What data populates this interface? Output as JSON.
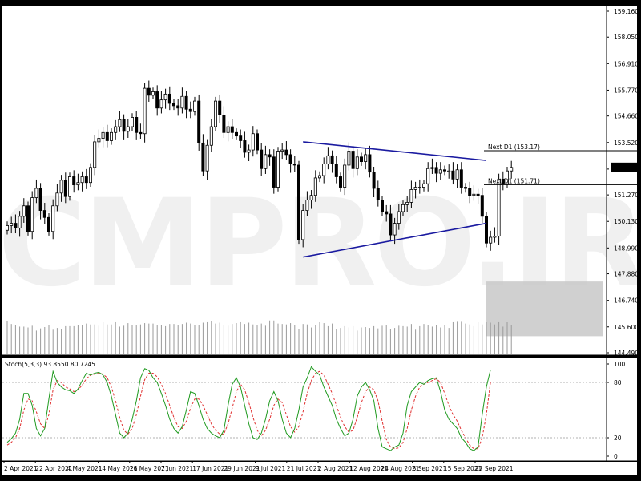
{
  "chart_data": {
    "type": "candlestick",
    "watermark": "CMPRO.IR",
    "price_axis": {
      "ticks": [
        "159.160",
        "158.050",
        "156.910",
        "155.770",
        "154.660",
        "153.520",
        "152.380",
        "151.270",
        "150.130",
        "148.990",
        "147.880",
        "146.740",
        "145.600",
        "144.490"
      ],
      "range": [
        144.49,
        159.16
      ],
      "current_price": "152.450"
    },
    "levels": [
      {
        "label": "Next D1 (153.17)",
        "price": 153.17
      },
      {
        "label": "Next D1 (151.71)",
        "price": 151.71
      }
    ],
    "time_axis": {
      "labels": [
        "2 Apr 2021",
        "22 Apr 2021",
        "4 May 2021",
        "14 May 2021",
        "26 May 2021",
        "7 Jun 2021",
        "17 Jun 2021",
        "29 Jun 2021",
        "9 Jul 2021",
        "21 Jul 2021",
        "2 Aug 2021",
        "12 Aug 2021",
        "24 Aug 2021",
        "3 Sep 2021",
        "15 Sep 2021",
        "27 Sep 2021"
      ]
    },
    "trendlines": [
      {
        "name": "upper",
        "from": {
          "bar": 71,
          "price": 153.55
        },
        "to": {
          "bar": 115,
          "price": 152.75
        }
      },
      {
        "name": "lower",
        "from": {
          "bar": 71,
          "price": 148.6
        },
        "to": {
          "bar": 115,
          "price": 150.05
        }
      }
    ],
    "highlight_zone": {
      "from_bar": 115,
      "to_bar": 143,
      "price_low": 145.2,
      "price_high": 147.55
    },
    "candles_close": [
      149.95,
      150.05,
      149.85,
      150.35,
      150.8,
      149.7,
      151.15,
      151.55,
      150.6,
      150.3,
      149.7,
      150.8,
      151.35,
      151.9,
      151.2,
      152.05,
      151.7,
      151.8,
      152.05,
      151.8,
      152.45,
      153.55,
      153.7,
      153.95,
      153.6,
      153.95,
      154.2,
      154.5,
      154.0,
      154.2,
      154.6,
      153.95,
      153.9,
      155.85,
      155.55,
      155.7,
      155.0,
      155.35,
      155.6,
      155.2,
      155.1,
      155.0,
      155.5,
      154.95,
      154.85,
      155.3,
      153.5,
      152.3,
      153.4,
      154.2,
      155.3,
      154.7,
      153.95,
      154.2,
      153.95,
      153.8,
      153.6,
      153.1,
      153.2,
      153.9,
      153.2,
      152.4,
      153.0,
      152.9,
      151.6,
      153.15,
      153.2,
      153.0,
      152.6,
      152.55,
      149.35,
      150.6,
      151.05,
      151.25,
      152.0,
      152.1,
      152.6,
      152.95,
      152.6,
      152.05,
      151.6,
      152.55,
      153.15,
      152.4,
      152.9,
      152.7,
      153.0,
      152.25,
      151.55,
      151.05,
      150.55,
      150.45,
      149.55,
      150.05,
      150.55,
      150.85,
      150.95,
      151.5,
      151.6,
      151.6,
      151.75,
      152.4,
      152.45,
      152.2,
      152.35,
      152.3,
      152.3,
      151.95,
      152.35,
      151.6,
      151.55,
      151.25,
      151.3,
      151.25,
      150.35,
      149.2,
      149.45,
      149.5,
      151.95,
      151.75,
      152.3,
      152.45
    ],
    "volume_relative": [
      0.74,
      0.67,
      0.64,
      0.61,
      0.61,
      0.59,
      0.63,
      0.52,
      0.57,
      0.6,
      0.64,
      0.54,
      0.58,
      0.56,
      0.62,
      0.62,
      0.62,
      0.64,
      0.65,
      0.68,
      0.66,
      0.66,
      0.63,
      0.71,
      0.66,
      0.66,
      0.71,
      0.61,
      0.63,
      0.69,
      0.64,
      0.65,
      0.66,
      0.69,
      0.68,
      0.68,
      0.64,
      0.65,
      0.62,
      0.67,
      0.67,
      0.65,
      0.67,
      0.7,
      0.68,
      0.64,
      0.65,
      0.7,
      0.71,
      0.73,
      0.68,
      0.7,
      0.65,
      0.63,
      0.67,
      0.69,
      0.71,
      0.67,
      0.7,
      0.66,
      0.64,
      0.68,
      0.63,
      0.75,
      0.75,
      0.68,
      0.67,
      0.66,
      0.69,
      0.64,
      0.56,
      0.67,
      0.66,
      0.59,
      0.64,
      0.71,
      0.69,
      0.62,
      0.68,
      0.56,
      0.58,
      0.62,
      0.59,
      0.62,
      0.52,
      0.59,
      0.6,
      0.58,
      0.62,
      0.57,
      0.63,
      0.65,
      0.56,
      0.58,
      0.63,
      0.62,
      0.61,
      0.67,
      0.54,
      0.62,
      0.67,
      0.64,
      0.61,
      0.65,
      0.59,
      0.64,
      0.58,
      0.71,
      0.72,
      0.72,
      0.68,
      0.66,
      0.62,
      0.71,
      0.66,
      0.71,
      0.7,
      0.66,
      0.71,
      0.61,
      0.71,
      0.65
    ],
    "indicator": {
      "label": "Stoch(5,3,3) 93.8550 80.7245",
      "levels": [
        80,
        20
      ],
      "ticks": [
        "100",
        "80",
        "20",
        "0"
      ],
      "main": [
        15,
        19,
        25,
        40,
        68,
        68,
        55,
        30,
        22,
        30,
        62,
        92,
        80,
        75,
        72,
        71,
        68,
        73,
        82,
        90,
        88,
        90,
        91,
        88,
        80,
        65,
        45,
        25,
        20,
        25,
        40,
        60,
        85,
        95,
        93,
        85,
        80,
        68,
        55,
        40,
        30,
        25,
        32,
        50,
        70,
        68,
        55,
        40,
        30,
        25,
        22,
        20,
        28,
        55,
        78,
        85,
        75,
        55,
        35,
        20,
        18,
        25,
        40,
        60,
        70,
        60,
        40,
        25,
        20,
        30,
        50,
        75,
        85,
        97,
        92,
        88,
        75,
        65,
        55,
        40,
        30,
        22,
        25,
        40,
        65,
        75,
        80,
        72,
        60,
        30,
        10,
        8,
        6,
        10,
        12,
        25,
        55,
        70,
        75,
        80,
        78,
        82,
        84,
        85,
        70,
        50,
        40,
        35,
        30,
        20,
        15,
        8,
        6,
        10,
        45,
        75,
        93.855
      ],
      "signal": [
        12,
        15,
        20,
        30,
        50,
        62,
        60,
        48,
        35,
        30,
        45,
        72,
        82,
        80,
        75,
        73,
        70,
        72,
        77,
        84,
        88,
        89,
        90,
        89,
        85,
        75,
        60,
        42,
        28,
        24,
        30,
        45,
        65,
        83,
        90,
        90,
        86,
        78,
        68,
        55,
        42,
        32,
        30,
        38,
        52,
        62,
        62,
        55,
        45,
        35,
        28,
        24,
        24,
        35,
        52,
        70,
        78,
        72,
        58,
        42,
        28,
        22,
        28,
        40,
        55,
        62,
        58,
        45,
        32,
        26,
        32,
        48,
        68,
        82,
        90,
        92,
        88,
        78,
        68,
        55,
        42,
        32,
        26,
        28,
        42,
        58,
        70,
        75,
        72,
        60,
        38,
        18,
        10,
        8,
        9,
        15,
        30,
        50,
        65,
        75,
        78,
        80,
        82,
        84,
        80,
        68,
        55,
        45,
        38,
        28,
        20,
        12,
        8,
        8,
        20,
        45,
        80.7245
      ]
    }
  }
}
